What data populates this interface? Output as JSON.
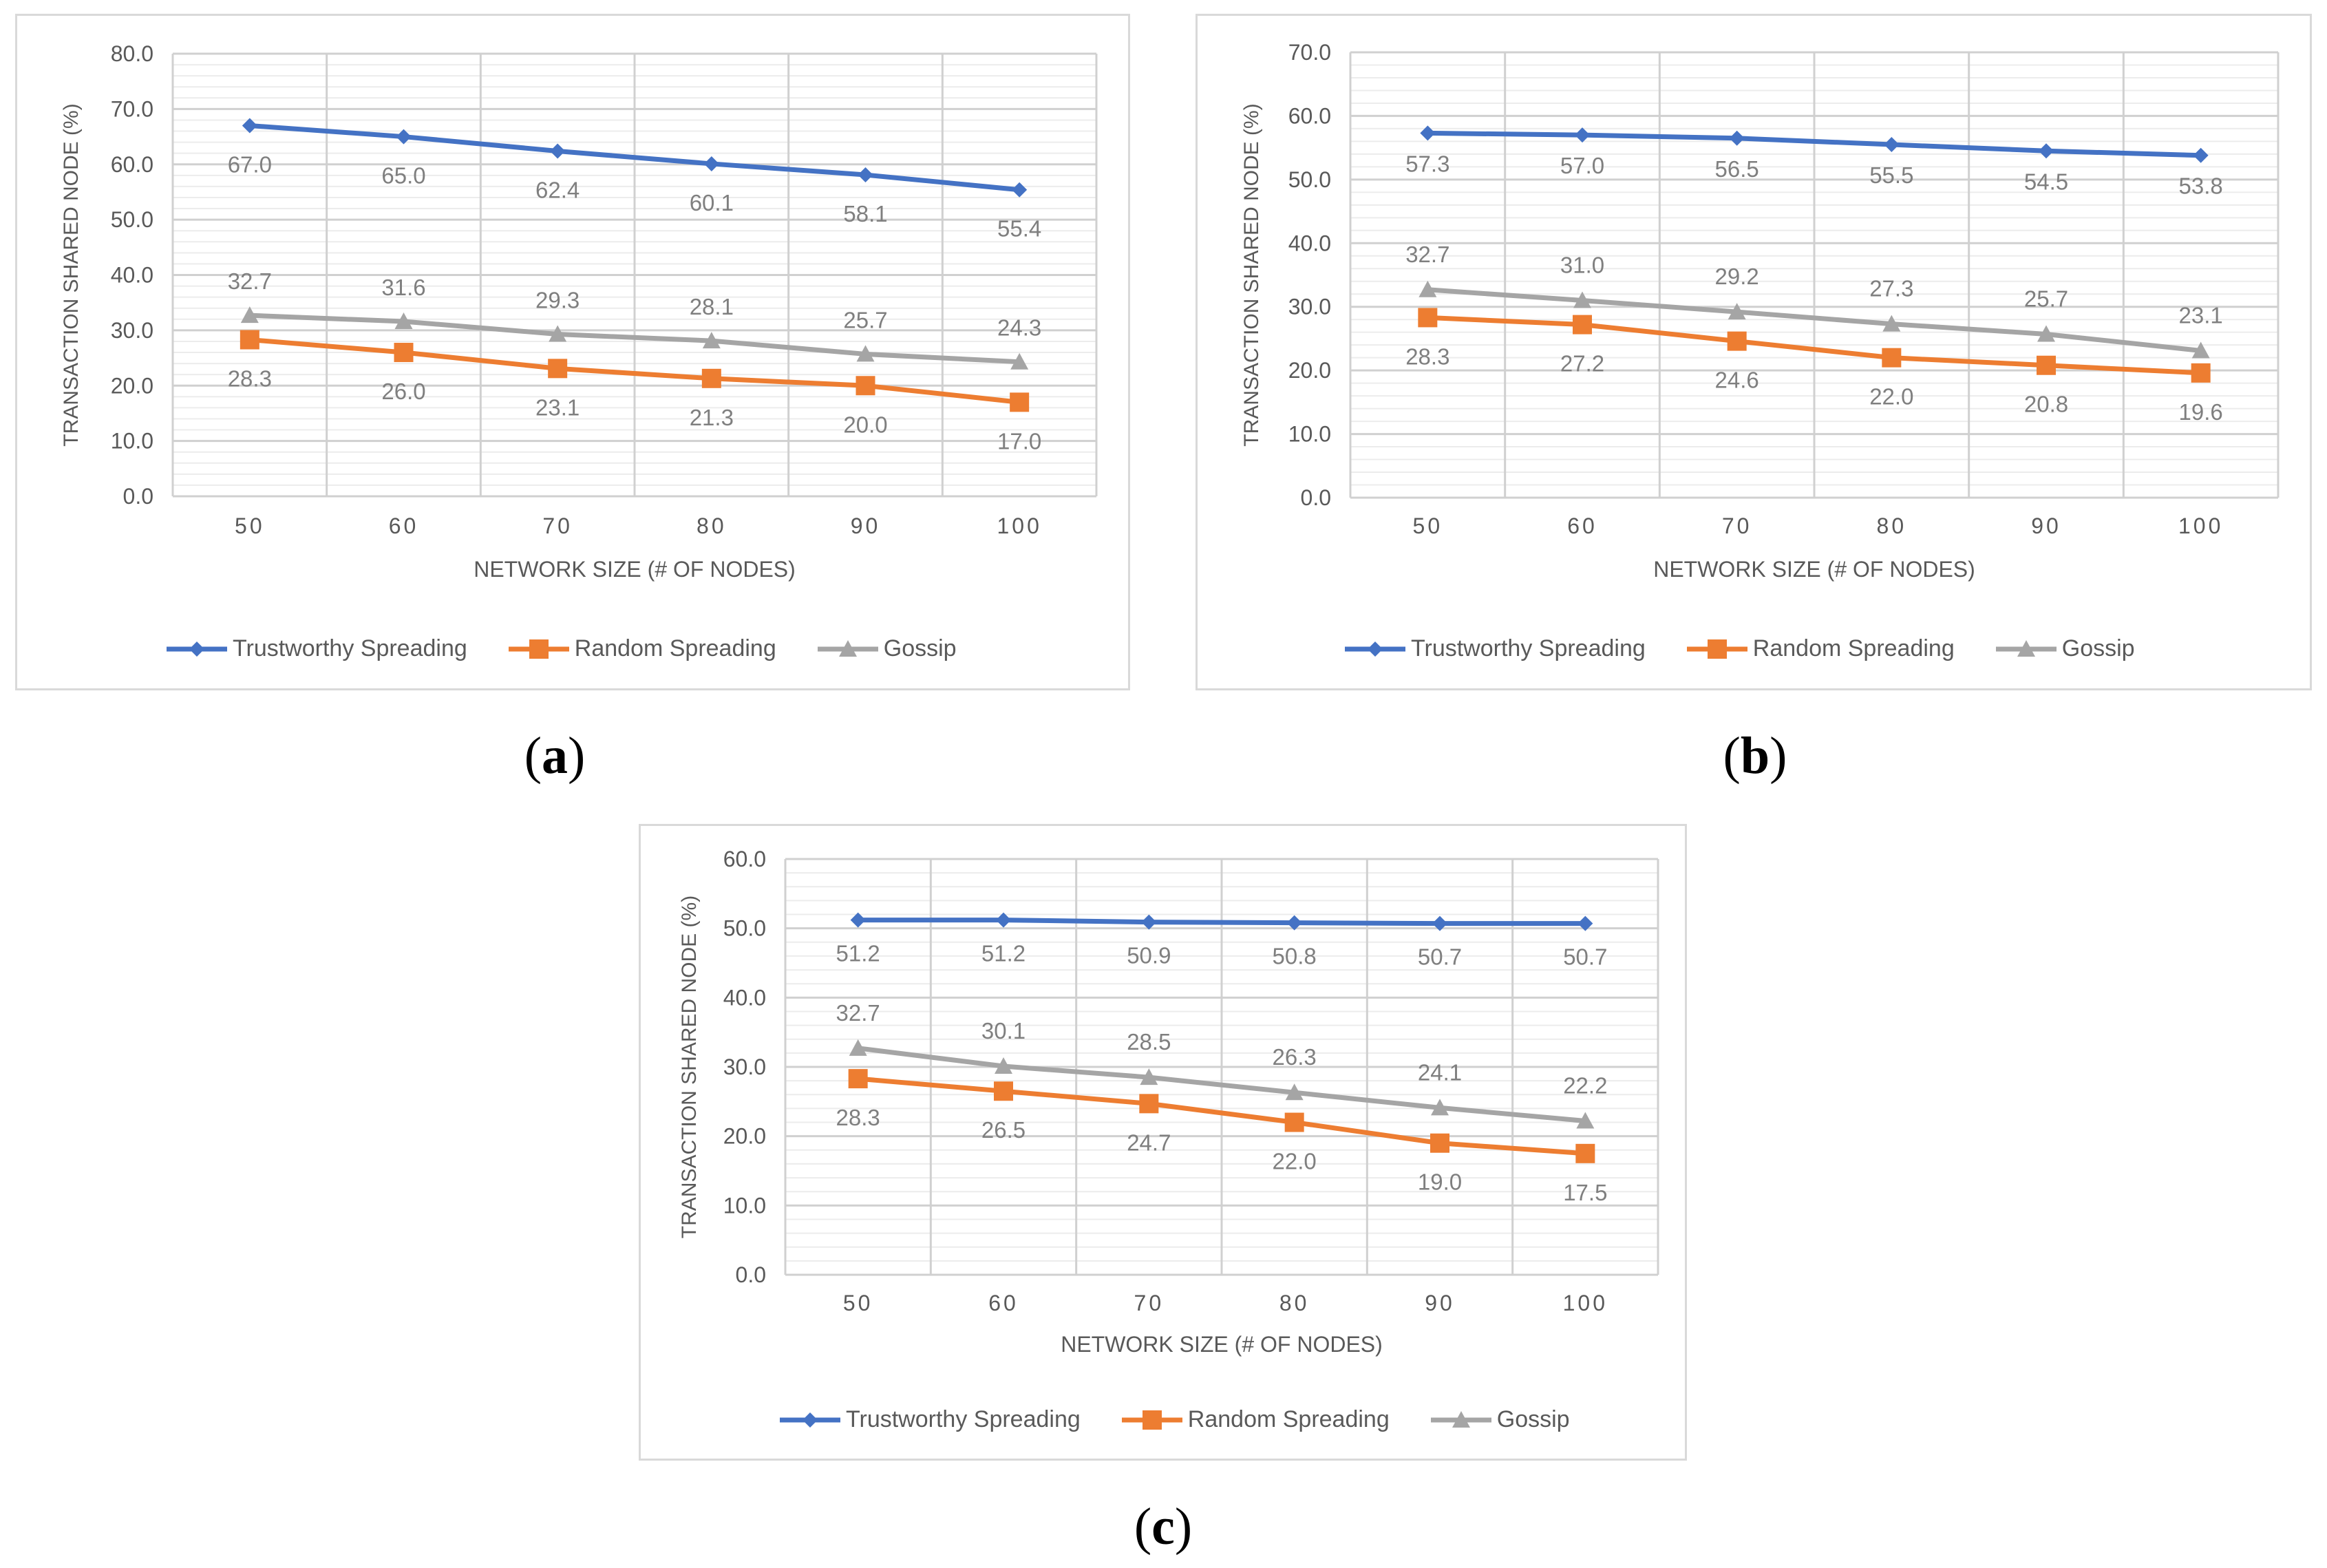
{
  "colors": {
    "trust": "#4472c4",
    "random": "#ed7d31",
    "gossip": "#a5a5a5",
    "grid": "#d9d9d9",
    "axis_text": "#595959"
  },
  "legend_marker_icons": [
    "diamond-icon",
    "square-icon",
    "triangle-icon"
  ],
  "chart_data": [
    {
      "type": "line",
      "caption": {
        "open": "(",
        "letter": "a",
        "close": ")"
      },
      "xlabel": "NETWORK SIZE (# OF NODES)",
      "ylabel": "TRANSACTION SHARED NODE (%)",
      "categories": [
        "50",
        "60",
        "70",
        "80",
        "90",
        "100"
      ],
      "ylim": [
        0,
        80
      ],
      "yticks": [
        "0.0",
        "10.0",
        "20.0",
        "30.0",
        "40.0",
        "50.0",
        "60.0",
        "70.0",
        "80.0"
      ],
      "series": [
        {
          "name": "Trustworthy Spreading",
          "values": [
            67.0,
            65.0,
            62.4,
            60.1,
            58.1,
            55.4
          ],
          "labels": [
            "67.0",
            "65.0",
            "62.4",
            "60.1",
            "58.1",
            "55.4"
          ]
        },
        {
          "name": "Random Spreading",
          "values": [
            28.3,
            26.0,
            23.1,
            21.3,
            20.0,
            17.0
          ],
          "labels": [
            "28.3",
            "26.0",
            "23.1",
            "21.3",
            "20.0",
            "17.0"
          ]
        },
        {
          "name": "Gossip",
          "values": [
            32.7,
            31.6,
            29.3,
            28.1,
            25.7,
            24.3
          ],
          "labels": [
            "32.7",
            "31.6",
            "29.3",
            "28.1",
            "25.7",
            "24.3"
          ]
        }
      ]
    },
    {
      "type": "line",
      "caption": {
        "open": "(",
        "letter": "b",
        "close": ")"
      },
      "xlabel": "NETWORK SIZE (# OF NODES)",
      "ylabel": "TRANSACTION SHARED NODE (%)",
      "categories": [
        "50",
        "60",
        "70",
        "80",
        "90",
        "100"
      ],
      "ylim": [
        0,
        70
      ],
      "yticks": [
        "0.0",
        "10.0",
        "20.0",
        "30.0",
        "40.0",
        "50.0",
        "60.0",
        "70.0"
      ],
      "series": [
        {
          "name": "Trustworthy Spreading",
          "values": [
            57.3,
            57.0,
            56.5,
            55.5,
            54.5,
            53.8
          ],
          "labels": [
            "57.3",
            "57.0",
            "56.5",
            "55.5",
            "54.5",
            "53.8"
          ]
        },
        {
          "name": "Random Spreading",
          "values": [
            28.3,
            27.2,
            24.6,
            22.0,
            20.8,
            19.6
          ],
          "labels": [
            "28.3",
            "27.2",
            "24.6",
            "22.0",
            "20.8",
            "19.6"
          ]
        },
        {
          "name": "Gossip",
          "values": [
            32.7,
            31.0,
            29.2,
            27.3,
            25.7,
            23.1
          ],
          "labels": [
            "32.7",
            "31.0",
            "29.2",
            "27.3",
            "25.7",
            "23.1"
          ]
        }
      ]
    },
    {
      "type": "line",
      "caption": {
        "open": "(",
        "letter": "c",
        "close": ")"
      },
      "xlabel": "NETWORK SIZE (# OF NODES)",
      "ylabel": "TRANSACTION SHARED NODE (%)",
      "categories": [
        "50",
        "60",
        "70",
        "80",
        "90",
        "100"
      ],
      "ylim": [
        0,
        60
      ],
      "yticks": [
        "0.0",
        "10.0",
        "20.0",
        "30.0",
        "40.0",
        "50.0",
        "60.0"
      ],
      "series": [
        {
          "name": "Trustworthy Spreading",
          "values": [
            51.2,
            51.2,
            50.9,
            50.8,
            50.7,
            50.7
          ],
          "labels": [
            "51.2",
            "51.2",
            "50.9",
            "50.8",
            "50.7",
            "50.7"
          ]
        },
        {
          "name": "Random Spreading",
          "values": [
            28.3,
            26.5,
            24.7,
            22.0,
            19.0,
            17.5
          ],
          "labels": [
            "28.3",
            "26.5",
            "24.7",
            "22.0",
            "19.0",
            "17.5"
          ]
        },
        {
          "name": "Gossip",
          "values": [
            32.7,
            30.1,
            28.5,
            26.3,
            24.1,
            22.2
          ],
          "labels": [
            "32.7",
            "30.1",
            "28.5",
            "26.3",
            "24.1",
            "22.2"
          ]
        }
      ]
    }
  ]
}
